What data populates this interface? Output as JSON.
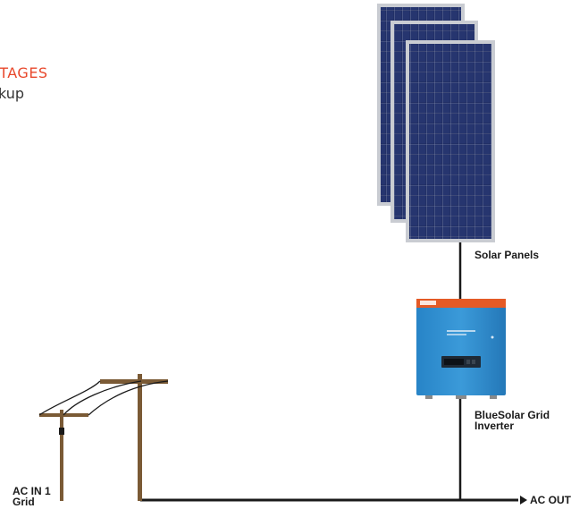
{
  "heading_fragment": "ITAGES",
  "subheading_fragment": "kup",
  "colors": {
    "heading": "#e8482c",
    "panel_cell": "#1e2a5e",
    "panel_frame": "#c9ccd2",
    "inverter_body": "#2f8fd0",
    "inverter_stripe": "#e45a26",
    "pole_wood": "#7a5a35",
    "wire": "#1a1a1a"
  },
  "labels": {
    "solar_panels": "Solar Panels",
    "inverter_line1": "BlueSolar Grid",
    "inverter_line2": "Inverter",
    "ac_in_line1": "AC IN 1",
    "ac_in_line2": "Grid",
    "ac_out": "AC OUT"
  },
  "icons": {
    "solar_panels": "solar-panel-icon",
    "inverter": "grid-inverter-icon",
    "utility_pole": "utility-pole-icon"
  }
}
